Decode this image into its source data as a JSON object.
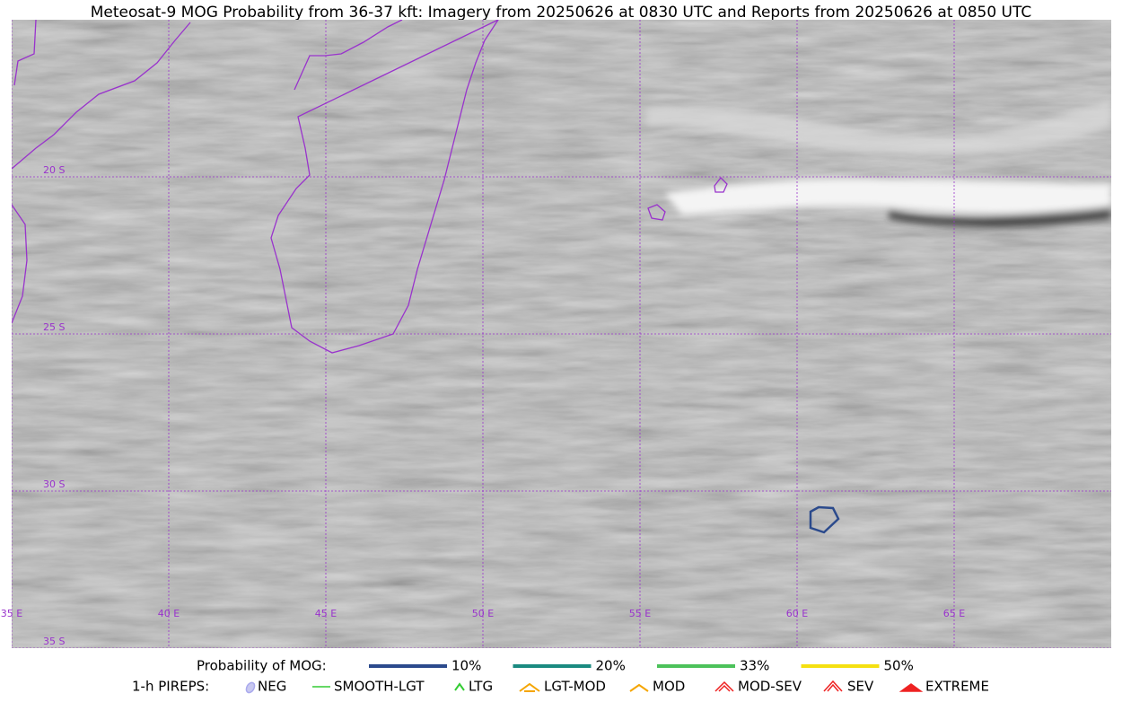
{
  "title": "Meteosat-9 MOG Probability from 36-37 kft: Imagery from 20250626 at 0830 UTC and Reports from 20250626 at 0850 UTC",
  "map": {
    "lat_labels": [
      "20 S",
      "25 S",
      "30 S",
      "35 S"
    ],
    "lon_labels": [
      "35 E",
      "40 E",
      "45 E",
      "50 E",
      "55 E",
      "60 E",
      "65 E"
    ]
  },
  "legend": {
    "probability": {
      "label": "Probability of MOG:",
      "items": [
        {
          "label": "10%",
          "color": "#2b4a8c"
        },
        {
          "label": "20%",
          "color": "#1a8a80"
        },
        {
          "label": "33%",
          "color": "#4cc25a"
        },
        {
          "label": "50%",
          "color": "#f5e010"
        }
      ]
    },
    "pireps": {
      "label": "1-h PIREPS:",
      "items": [
        "NEG",
        "SMOOTH-LGT",
        "LTG",
        "LGT-MOD",
        "MOD",
        "MOD-SEV",
        "SEV",
        "EXTREME"
      ]
    }
  }
}
